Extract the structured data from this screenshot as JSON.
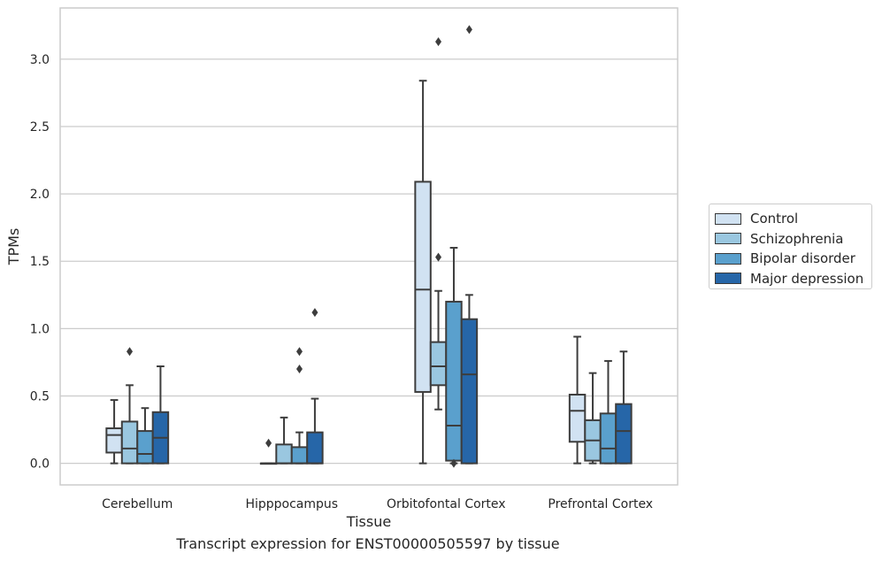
{
  "chart_data": {
    "type": "boxplot",
    "title": "",
    "caption": "Transcript expression for ENST00000505597 by tissue",
    "xlabel": "Tissue",
    "ylabel": "TPMs",
    "ylim": [
      -0.16,
      3.38
    ],
    "yticks": [
      0.0,
      0.5,
      1.0,
      1.5,
      2.0,
      2.5,
      3.0
    ],
    "ytick_labels": [
      "0.0",
      "0.5",
      "1.0",
      "1.5",
      "2.0",
      "2.5",
      "3.0"
    ],
    "grid": "horizontal",
    "legend_position": "outside-right",
    "categories": [
      "Cerebellum",
      "Hipppocampus",
      "Orbitofontal Cortex",
      "Prefrontal Cortex"
    ],
    "series": [
      {
        "name": "Control",
        "color": "#d1e2f2",
        "boxes": [
          {
            "whislo": 0.0,
            "q1": 0.08,
            "med": 0.21,
            "q3": 0.26,
            "whishi": 0.47,
            "fliers": []
          },
          {
            "whislo": 0.0,
            "q1": 0.0,
            "med": 0.0,
            "q3": 0.0,
            "whishi": 0.0,
            "fliers": [
              0.15
            ]
          },
          {
            "whislo": 0.0,
            "q1": 0.53,
            "med": 1.29,
            "q3": 2.09,
            "whishi": 2.84,
            "fliers": []
          },
          {
            "whislo": 0.0,
            "q1": 0.16,
            "med": 0.39,
            "q3": 0.51,
            "whishi": 0.94,
            "fliers": []
          }
        ]
      },
      {
        "name": "Schizophrenia",
        "color": "#9ac7e0",
        "boxes": [
          {
            "whislo": 0.0,
            "q1": 0.0,
            "med": 0.11,
            "q3": 0.31,
            "whishi": 0.58,
            "fliers": [
              0.83
            ]
          },
          {
            "whislo": 0.0,
            "q1": 0.0,
            "med": 0.0,
            "q3": 0.14,
            "whishi": 0.34,
            "fliers": []
          },
          {
            "whislo": 0.4,
            "q1": 0.58,
            "med": 0.72,
            "q3": 0.9,
            "whishi": 1.28,
            "fliers": [
              3.13,
              1.53
            ]
          },
          {
            "whislo": 0.0,
            "q1": 0.02,
            "med": 0.17,
            "q3": 0.32,
            "whishi": 0.67,
            "fliers": []
          }
        ]
      },
      {
        "name": "Bipolar disorder",
        "color": "#5aa0cd",
        "boxes": [
          {
            "whislo": 0.0,
            "q1": 0.0,
            "med": 0.07,
            "q3": 0.24,
            "whishi": 0.41,
            "fliers": []
          },
          {
            "whislo": 0.0,
            "q1": 0.0,
            "med": 0.0,
            "q3": 0.12,
            "whishi": 0.23,
            "fliers": [
              0.83,
              0.7
            ]
          },
          {
            "whislo": 0.0,
            "q1": 0.02,
            "med": 0.28,
            "q3": 1.2,
            "whishi": 1.6,
            "fliers": [
              0.0
            ]
          },
          {
            "whislo": 0.0,
            "q1": 0.0,
            "med": 0.11,
            "q3": 0.37,
            "whishi": 0.76,
            "fliers": []
          }
        ]
      },
      {
        "name": "Major depression",
        "color": "#2666a8",
        "boxes": [
          {
            "whislo": 0.0,
            "q1": 0.0,
            "med": 0.19,
            "q3": 0.38,
            "whishi": 0.72,
            "fliers": []
          },
          {
            "whislo": 0.0,
            "q1": 0.0,
            "med": 0.0,
            "q3": 0.23,
            "whishi": 0.48,
            "fliers": [
              1.12
            ]
          },
          {
            "whislo": 0.0,
            "q1": 0.0,
            "med": 0.66,
            "q3": 1.07,
            "whishi": 1.25,
            "fliers": [
              3.22
            ]
          },
          {
            "whislo": 0.0,
            "q1": 0.0,
            "med": 0.24,
            "q3": 0.44,
            "whishi": 0.83,
            "fliers": []
          }
        ]
      }
    ]
  }
}
